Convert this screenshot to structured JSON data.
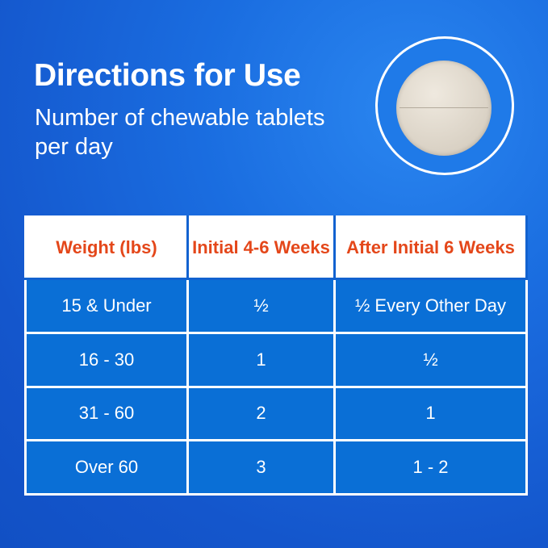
{
  "header": {
    "title": "Directions for Use",
    "subtitle": "Number of chewable tablets per day"
  },
  "image": {
    "icon": "chewable-tablet"
  },
  "colors": {
    "background": "#1456cc",
    "cell": "#0a6fd6",
    "header_text": "#e4471a"
  },
  "table": {
    "columns": [
      "Weight (lbs)",
      "Initial 4-6 Weeks",
      "After Initial 6 Weeks"
    ],
    "rows": [
      [
        "15 & Under",
        "½",
        "½ Every Other Day"
      ],
      [
        "16 - 30",
        "1",
        "½"
      ],
      [
        "31 - 60",
        "2",
        "1"
      ],
      [
        "Over 60",
        "3",
        "1 - 2"
      ]
    ]
  }
}
